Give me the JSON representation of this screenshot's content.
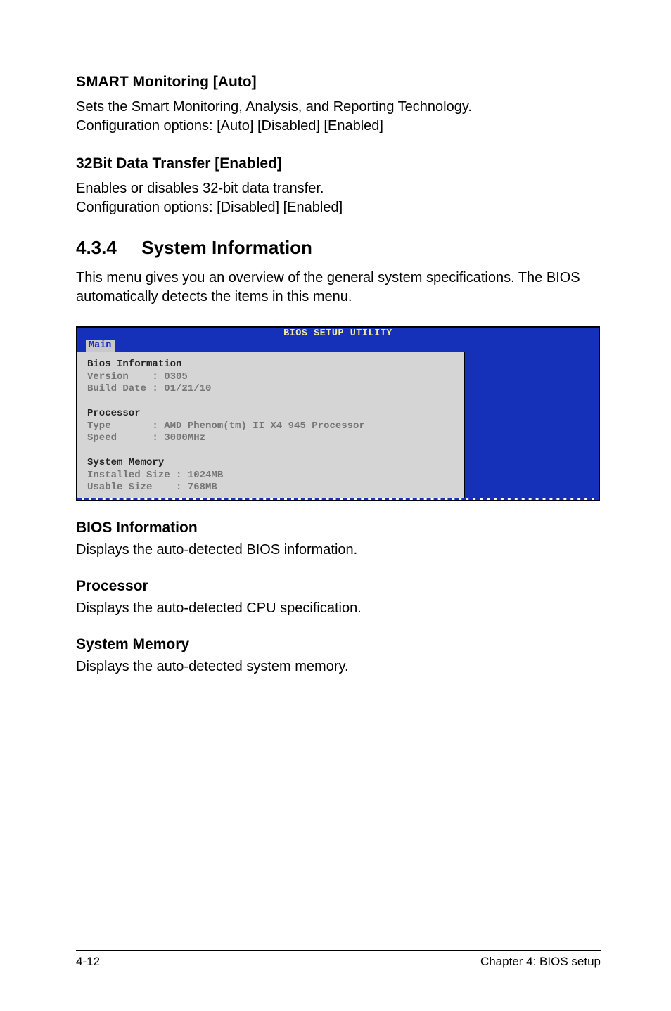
{
  "sections": {
    "smart": {
      "heading": "SMART Monitoring [Auto]",
      "line1": "Sets the Smart Monitoring, Analysis, and Reporting Technology.",
      "line2": "Configuration options: [Auto] [Disabled] [Enabled]"
    },
    "bit32": {
      "heading": "32Bit Data Transfer [Enabled]",
      "line1": "Enables or disables 32-bit data transfer.",
      "line2": "Configuration options: [Disabled] [Enabled]"
    },
    "sysinfo": {
      "number": "4.3.4",
      "title": "System Information",
      "line1": "This menu gives you an overview of the general system specifications. The BIOS automatically detects the items in this menu."
    },
    "biosinfo": {
      "heading": "BIOS Information",
      "text": "Displays the auto-detected BIOS information."
    },
    "processor": {
      "heading": "Processor",
      "text": "Displays the auto-detected CPU specification."
    },
    "sysmem": {
      "heading": "System Memory",
      "text": "Displays the auto-detected system memory."
    }
  },
  "bios": {
    "title": "BIOS SETUP UTILITY",
    "tab": "Main",
    "colors": {
      "header_bg": "#1531b9",
      "header_fg": "#f5e9a4",
      "tab_bg": "#c8c8c8",
      "tab_fg": "#1531b9",
      "body_bg": "#d5d5d5",
      "dim_fg": "#757575",
      "bold_fg": "#232323",
      "right_bg": "#1531b9",
      "border": "#000000"
    },
    "lines": {
      "l0": "Bios Information",
      "l1": "Version    : 0305",
      "l2": "Build Date : 01/21/10",
      "l3": "",
      "l4": "Processor",
      "l5": "Type       : AMD Phenom(tm) II X4 945 Processor",
      "l6": "Speed      : 3000MHz",
      "l7": "",
      "l8": "System Memory",
      "l9": "Installed Size : 1024MB",
      "l10": "Usable Size    : 768MB"
    }
  },
  "footer": {
    "left": "4-12",
    "right": "Chapter 4: BIOS setup"
  }
}
